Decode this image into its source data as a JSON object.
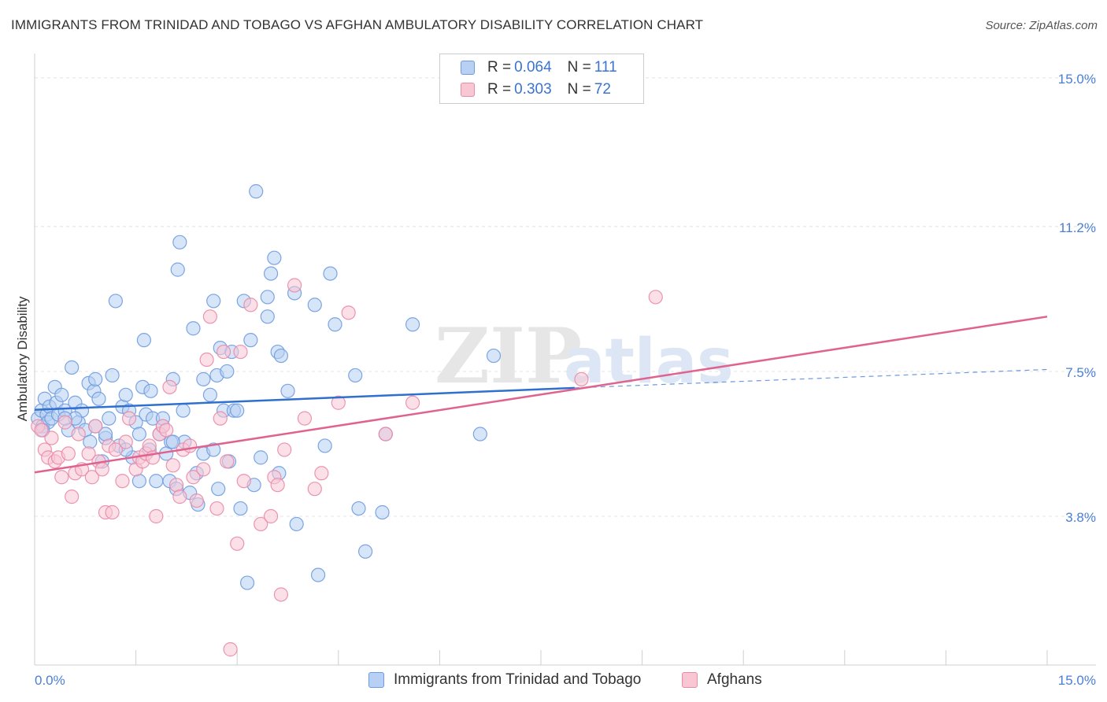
{
  "header": {
    "title": "IMMIGRANTS FROM TRINIDAD AND TOBAGO VS AFGHAN AMBULATORY DISABILITY CORRELATION CHART",
    "source": "Source: ZipAtlas.com"
  },
  "legend": {
    "series": [
      {
        "r_label": "R =",
        "r_value": "0.064",
        "n_label": "N =",
        "n_value": "111"
      },
      {
        "r_label": "R =",
        "r_value": "0.303",
        "n_label": "N =",
        "n_value": "72"
      }
    ]
  },
  "watermark": {
    "zip": "ZIP",
    "atlas": "atlas"
  },
  "colors": {
    "blue_fill": "#b7d0f3",
    "blue_stroke": "#6f9be0",
    "blue_line": "#2f6fd0",
    "pink_fill": "#f9c6d4",
    "pink_stroke": "#e98aa8",
    "pink_line": "#e0628f",
    "grid": "#e3e3e3",
    "tick_text": "#4a7fd4"
  },
  "chart_data": {
    "type": "scatter",
    "title": "IMMIGRANTS FROM TRINIDAD AND TOBAGO VS AFGHAN AMBULATORY DISABILITY CORRELATION CHART",
    "xlabel": "",
    "ylabel": "Ambulatory Disability",
    "xlim": [
      0,
      15
    ],
    "ylim": [
      0,
      15.4
    ],
    "x_tick_labels": [
      "0.0%",
      "15.0%"
    ],
    "y_ticks": [
      3.8,
      7.5,
      11.2,
      15.0
    ],
    "y_tick_labels": [
      "3.8%",
      "7.5%",
      "11.2%",
      "15.0%"
    ],
    "grid": true,
    "legend_position": "top-center",
    "series": [
      {
        "name": "Immigrants from Trinidad and Tobago",
        "color": "#6f9be0",
        "trend": {
          "x0": 0.0,
          "y0": 6.52,
          "x1": 8.0,
          "y1": 7.08,
          "dashed_to_x": 15.0,
          "dashed_to_y": 7.55
        },
        "points": [
          [
            0.05,
            6.3
          ],
          [
            0.1,
            6.5
          ],
          [
            0.12,
            6.1
          ],
          [
            0.15,
            6.8
          ],
          [
            0.18,
            6.4
          ],
          [
            0.2,
            6.2
          ],
          [
            0.22,
            6.6
          ],
          [
            0.25,
            6.3
          ],
          [
            0.3,
            7.1
          ],
          [
            0.32,
            6.7
          ],
          [
            0.35,
            6.4
          ],
          [
            0.4,
            6.9
          ],
          [
            0.45,
            6.5
          ],
          [
            0.5,
            6.0
          ],
          [
            0.55,
            7.6
          ],
          [
            0.6,
            6.7
          ],
          [
            0.65,
            6.2
          ],
          [
            0.7,
            6.5
          ],
          [
            0.75,
            6.0
          ],
          [
            0.8,
            7.2
          ],
          [
            0.82,
            5.7
          ],
          [
            0.88,
            7.0
          ],
          [
            0.9,
            7.3
          ],
          [
            0.95,
            6.8
          ],
          [
            1.0,
            5.2
          ],
          [
            1.05,
            5.8
          ],
          [
            1.1,
            6.3
          ],
          [
            1.15,
            7.4
          ],
          [
            1.2,
            9.3
          ],
          [
            1.25,
            5.6
          ],
          [
            1.3,
            6.6
          ],
          [
            1.35,
            6.9
          ],
          [
            1.4,
            6.5
          ],
          [
            1.45,
            5.3
          ],
          [
            1.5,
            6.2
          ],
          [
            1.55,
            5.9
          ],
          [
            1.6,
            7.1
          ],
          [
            1.62,
            8.3
          ],
          [
            1.65,
            6.4
          ],
          [
            1.7,
            5.5
          ],
          [
            1.72,
            7.0
          ],
          [
            1.75,
            6.3
          ],
          [
            1.8,
            4.7
          ],
          [
            1.85,
            5.9
          ],
          [
            1.9,
            6.1
          ],
          [
            1.95,
            5.4
          ],
          [
            2.0,
            4.7
          ],
          [
            2.02,
            5.7
          ],
          [
            2.05,
            7.3
          ],
          [
            2.1,
            4.5
          ],
          [
            2.12,
            10.1
          ],
          [
            2.15,
            10.8
          ],
          [
            2.2,
            6.5
          ],
          [
            2.22,
            5.7
          ],
          [
            2.3,
            4.4
          ],
          [
            2.35,
            8.6
          ],
          [
            2.4,
            4.9
          ],
          [
            2.42,
            4.1
          ],
          [
            2.5,
            7.3
          ],
          [
            2.6,
            6.9
          ],
          [
            2.65,
            9.3
          ],
          [
            2.7,
            7.4
          ],
          [
            2.72,
            4.5
          ],
          [
            2.75,
            8.1
          ],
          [
            2.8,
            6.5
          ],
          [
            2.85,
            7.5
          ],
          [
            2.88,
            5.2
          ],
          [
            2.92,
            8.0
          ],
          [
            2.95,
            6.5
          ],
          [
            3.05,
            4.0
          ],
          [
            3.1,
            9.3
          ],
          [
            3.15,
            2.1
          ],
          [
            3.2,
            8.3
          ],
          [
            3.25,
            4.6
          ],
          [
            3.28,
            12.1
          ],
          [
            3.35,
            5.3
          ],
          [
            3.45,
            9.4
          ],
          [
            3.5,
            10.0
          ],
          [
            3.55,
            10.4
          ],
          [
            3.6,
            8.0
          ],
          [
            3.62,
            4.9
          ],
          [
            3.65,
            7.9
          ],
          [
            3.75,
            7.0
          ],
          [
            3.85,
            9.5
          ],
          [
            3.88,
            3.6
          ],
          [
            4.15,
            9.2
          ],
          [
            4.2,
            2.3
          ],
          [
            4.3,
            5.6
          ],
          [
            4.38,
            10.0
          ],
          [
            4.45,
            8.7
          ],
          [
            4.75,
            7.4
          ],
          [
            4.8,
            4.0
          ],
          [
            4.9,
            2.9
          ],
          [
            5.15,
            3.9
          ],
          [
            5.2,
            5.9
          ],
          [
            5.6,
            8.7
          ],
          [
            6.6,
            5.9
          ],
          [
            6.8,
            7.9
          ],
          [
            3.45,
            8.9
          ],
          [
            3.0,
            6.5
          ],
          [
            0.6,
            6.3
          ],
          [
            0.9,
            6.1
          ],
          [
            1.05,
            5.9
          ],
          [
            2.05,
            5.7
          ],
          [
            2.5,
            5.4
          ],
          [
            1.35,
            5.5
          ],
          [
            1.55,
            4.7
          ],
          [
            1.9,
            6.3
          ],
          [
            2.65,
            5.5
          ],
          [
            0.45,
            6.3
          ],
          [
            0.12,
            6.0
          ]
        ]
      },
      {
        "name": "Afghans",
        "color": "#e98aa8",
        "trend": {
          "x0": 0.0,
          "y0": 4.92,
          "x1": 15.0,
          "y1": 8.9
        },
        "points": [
          [
            0.05,
            6.1
          ],
          [
            0.1,
            6.0
          ],
          [
            0.15,
            5.5
          ],
          [
            0.2,
            5.3
          ],
          [
            0.25,
            5.8
          ],
          [
            0.3,
            5.2
          ],
          [
            0.35,
            5.3
          ],
          [
            0.4,
            4.8
          ],
          [
            0.45,
            6.2
          ],
          [
            0.5,
            5.4
          ],
          [
            0.55,
            4.3
          ],
          [
            0.6,
            4.9
          ],
          [
            0.65,
            5.9
          ],
          [
            0.7,
            5.0
          ],
          [
            0.8,
            5.4
          ],
          [
            0.85,
            4.8
          ],
          [
            0.9,
            6.1
          ],
          [
            0.95,
            5.2
          ],
          [
            1.0,
            5.0
          ],
          [
            1.05,
            3.9
          ],
          [
            1.1,
            5.6
          ],
          [
            1.15,
            3.9
          ],
          [
            1.2,
            5.5
          ],
          [
            1.3,
            4.7
          ],
          [
            1.35,
            5.7
          ],
          [
            1.4,
            6.3
          ],
          [
            1.5,
            5.0
          ],
          [
            1.55,
            5.3
          ],
          [
            1.6,
            5.2
          ],
          [
            1.65,
            5.4
          ],
          [
            1.7,
            5.6
          ],
          [
            1.75,
            5.3
          ],
          [
            1.8,
            3.8
          ],
          [
            1.85,
            5.9
          ],
          [
            1.9,
            6.1
          ],
          [
            1.95,
            6.0
          ],
          [
            2.0,
            7.1
          ],
          [
            2.05,
            5.1
          ],
          [
            2.1,
            4.6
          ],
          [
            2.15,
            4.3
          ],
          [
            2.2,
            5.5
          ],
          [
            2.3,
            5.6
          ],
          [
            2.35,
            4.8
          ],
          [
            2.4,
            4.2
          ],
          [
            2.5,
            5.0
          ],
          [
            2.55,
            7.8
          ],
          [
            2.6,
            8.9
          ],
          [
            2.7,
            4.0
          ],
          [
            2.75,
            6.3
          ],
          [
            2.8,
            8.0
          ],
          [
            2.85,
            5.2
          ],
          [
            2.9,
            0.4
          ],
          [
            3.0,
            3.1
          ],
          [
            3.05,
            8.0
          ],
          [
            3.1,
            4.7
          ],
          [
            3.2,
            9.2
          ],
          [
            3.35,
            3.6
          ],
          [
            3.5,
            3.8
          ],
          [
            3.55,
            4.8
          ],
          [
            3.6,
            4.6
          ],
          [
            3.65,
            1.8
          ],
          [
            3.7,
            5.5
          ],
          [
            3.85,
            9.7
          ],
          [
            4.0,
            6.3
          ],
          [
            4.15,
            4.5
          ],
          [
            4.25,
            4.9
          ],
          [
            4.5,
            6.7
          ],
          [
            4.65,
            9.0
          ],
          [
            5.2,
            5.9
          ],
          [
            5.6,
            6.7
          ],
          [
            8.1,
            7.3
          ],
          [
            9.2,
            9.4
          ]
        ]
      }
    ]
  },
  "bottom_legend": {
    "items": [
      {
        "label": "Immigrants from Trinidad and Tobago"
      },
      {
        "label": "Afghans"
      }
    ]
  }
}
